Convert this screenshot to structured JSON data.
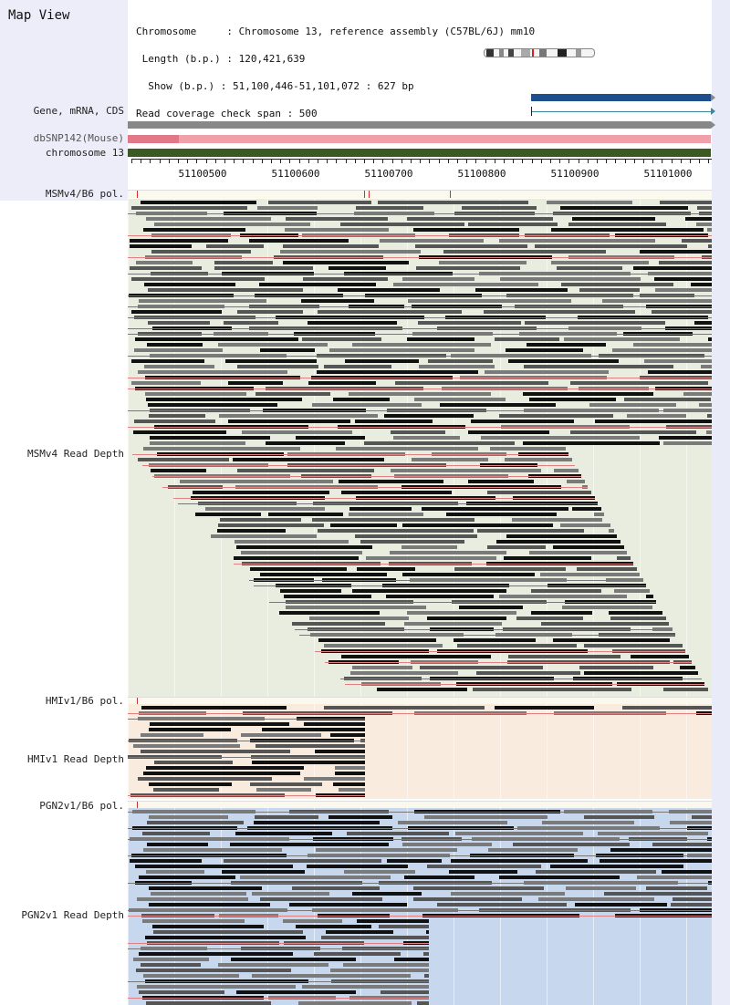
{
  "header": {
    "title": "Map View",
    "info_lines": [
      "Chromosome     : Chromosome 13, reference assembly (C57BL/6J) mm10",
      " Length (b.p.) : 120,421,639",
      "  Show (b.p.) : 51,100,446-51,101,072 : 627 bp",
      "Read coverage check span : 500"
    ]
  },
  "tracks": {
    "gene_label": "Gene, mRNA, CDS",
    "snp_label": "dbSNP142(Mouse)",
    "chrom_label": "chromosome 13"
  },
  "axis": {
    "ticks": [
      "51100500",
      "51100600",
      "51100700",
      "51100800",
      "51100900",
      "51101000"
    ]
  },
  "panels": {
    "msm_pol": "MSMv4/B6 pol.",
    "msm_depth": "MSMv4 Read Depth",
    "hmi_pol": "HMIv1/B6 pol.",
    "hmi_depth": "HMIv1 Read Depth",
    "pgn_pol": "PGN2v1/B6 pol.",
    "pgn_depth": "PGN2v1 Read Depth"
  },
  "colors": {
    "msm_bg": "#e9eddf",
    "hmi_bg": "#faebdf",
    "pgn_bg": "#c7d7ee",
    "gene_blue": "#1f4e8c",
    "snp_pink": "#f0a0a8",
    "chrom_green": "#3b5a23"
  }
}
